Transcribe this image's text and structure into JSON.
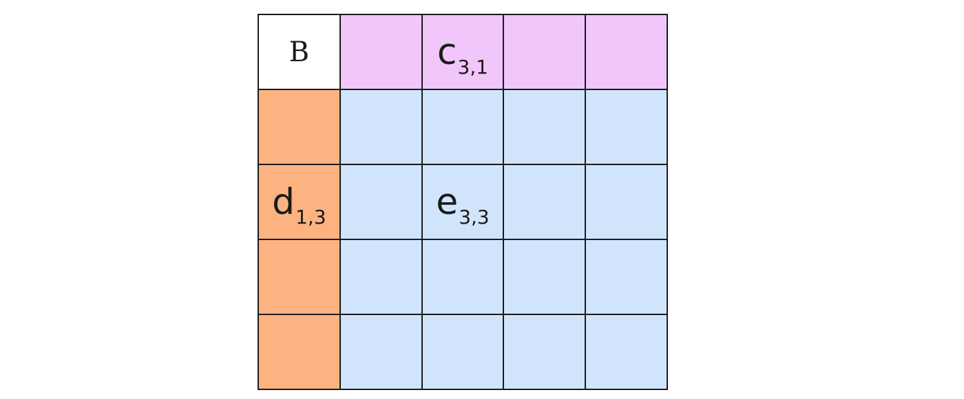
{
  "diagram": {
    "corner_label": "B",
    "colors": {
      "corner": "#ffffff",
      "top_row": "#f0c6fb",
      "left_column": "#fdb381",
      "body": "#d0e5fb",
      "border": "#1a1a1a"
    },
    "labels": {
      "c": {
        "symbol": "c",
        "subscript": "3,1"
      },
      "d": {
        "symbol": "d",
        "subscript": "1,3"
      },
      "e": {
        "symbol": "e",
        "subscript": "3,3"
      }
    }
  }
}
